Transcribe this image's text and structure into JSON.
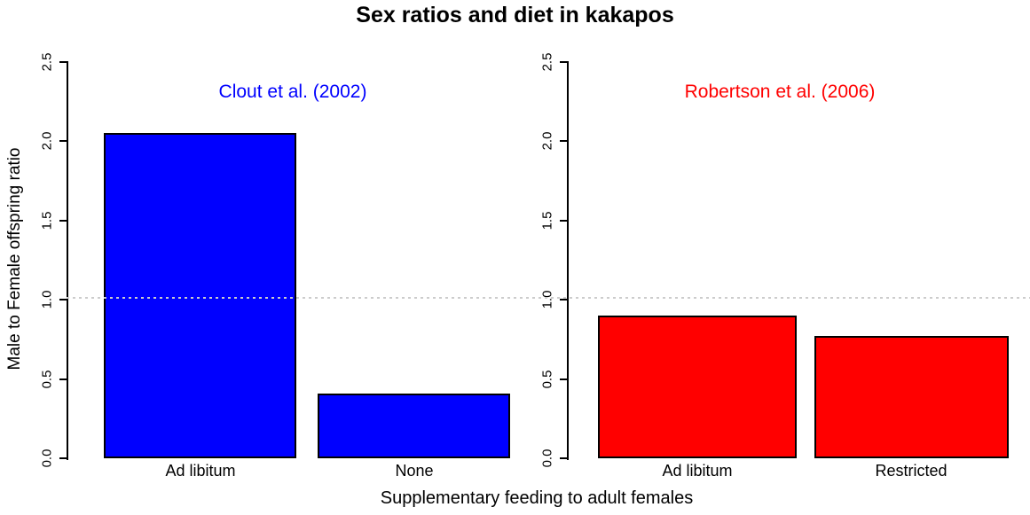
{
  "title": "Sex ratios and diet in kakapos",
  "axes": {
    "y_label": "Male to Female offspring ratio",
    "x_label": "Supplementary feeding to adult females",
    "y_ticks": [
      "0.0",
      "0.5",
      "1.0",
      "1.5",
      "2.0",
      "2.5"
    ],
    "y_max": 2.5,
    "reference_line_y": 1.0
  },
  "colors": {
    "left_panel": "#0000ff",
    "right_panel": "#ff0000",
    "reference_line": "#cccccc"
  },
  "panels": [
    {
      "annotation": "Clout et al. (2002)",
      "color": "#0000ff",
      "bars": [
        {
          "label": "Ad libitum",
          "value": 2.05
        },
        {
          "label": "None",
          "value": 0.41
        }
      ]
    },
    {
      "annotation": "Robertson et al. (2006)",
      "color": "#ff0000",
      "bars": [
        {
          "label": "Ad libitum",
          "value": 0.9
        },
        {
          "label": "Restricted",
          "value": 0.77
        }
      ]
    }
  ],
  "chart_data": [
    {
      "type": "bar",
      "title": "Clout et al. (2002)",
      "categories": [
        "Ad libitum",
        "None"
      ],
      "values": [
        2.05,
        0.41
      ],
      "bar_color": "#0000ff",
      "xlabel": "Supplementary feeding to adult females",
      "ylabel": "Male to Female offspring ratio",
      "ylim": [
        0,
        2.5
      ],
      "yticks": [
        0.0,
        0.5,
        1.0,
        1.5,
        2.0,
        2.5
      ],
      "reference_line": 1.0,
      "grid": false,
      "legend": false
    },
    {
      "type": "bar",
      "title": "Robertson et al. (2006)",
      "categories": [
        "Ad libitum",
        "Restricted"
      ],
      "values": [
        0.9,
        0.77
      ],
      "bar_color": "#ff0000",
      "xlabel": "Supplementary feeding to adult females",
      "ylabel": "Male to Female offspring ratio",
      "ylim": [
        0,
        2.5
      ],
      "yticks": [
        0.0,
        0.5,
        1.0,
        1.5,
        2.0,
        2.5
      ],
      "reference_line": 1.0,
      "grid": false,
      "legend": false
    }
  ]
}
